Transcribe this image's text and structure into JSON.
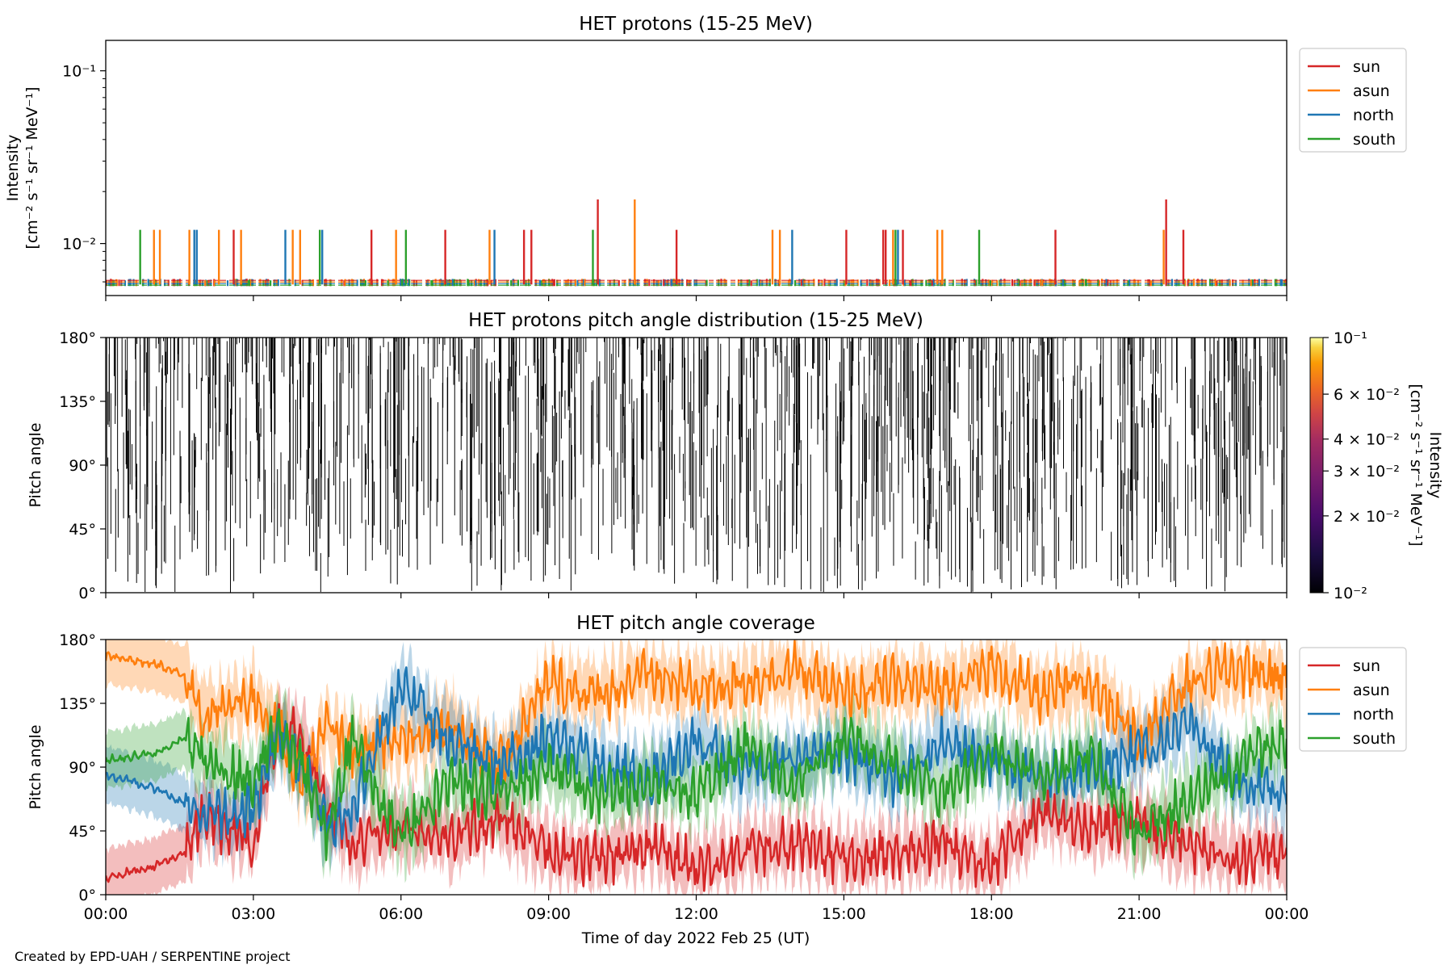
{
  "credit": "Created by EPD-UAH / SERPENTINE project",
  "colors": {
    "sun": "#d62728",
    "asun": "#ff7f0e",
    "north": "#1f77b4",
    "south": "#2ca02c"
  },
  "chart_data": [
    {
      "type": "line",
      "title": "HET protons (15-25 MeV)",
      "ylabel_line1": "Intensity",
      "ylabel_line2": "[cm⁻² s⁻¹ sr⁻¹ MeV⁻¹]",
      "yscale": "log",
      "ylim": [
        0.005,
        0.15
      ],
      "yticks": [
        {
          "value": 0.1,
          "label": "10⁻¹"
        },
        {
          "value": 0.01,
          "label": "10⁻²"
        }
      ],
      "xlim_hours": [
        0,
        24
      ],
      "legend": {
        "placement": "outside-right",
        "entries": [
          "sun",
          "asun",
          "north",
          "south"
        ]
      },
      "baseline_value": 0.0058,
      "series": [
        {
          "name": "sun",
          "spikes": [
            {
              "t": 5.4,
              "v": 0.012
            },
            {
              "t": 6.9,
              "v": 0.012
            },
            {
              "t": 8.5,
              "v": 0.012
            },
            {
              "t": 8.65,
              "v": 0.012
            },
            {
              "t": 10.0,
              "v": 0.018
            },
            {
              "t": 11.6,
              "v": 0.012
            },
            {
              "t": 15.05,
              "v": 0.012
            },
            {
              "t": 15.8,
              "v": 0.012
            },
            {
              "t": 16.2,
              "v": 0.012
            },
            {
              "t": 19.3,
              "v": 0.012
            },
            {
              "t": 21.55,
              "v": 0.018
            },
            {
              "t": 21.9,
              "v": 0.012
            },
            {
              "t": 2.6,
              "v": 0.012
            },
            {
              "t": 15.85,
              "v": 0.012
            }
          ]
        },
        {
          "name": "asun",
          "spikes": [
            {
              "t": 0.98,
              "v": 0.012
            },
            {
              "t": 1.1,
              "v": 0.012
            },
            {
              "t": 1.7,
              "v": 0.012
            },
            {
              "t": 2.3,
              "v": 0.012
            },
            {
              "t": 2.75,
              "v": 0.012
            },
            {
              "t": 3.8,
              "v": 0.012
            },
            {
              "t": 3.95,
              "v": 0.012
            },
            {
              "t": 5.9,
              "v": 0.012
            },
            {
              "t": 7.8,
              "v": 0.012
            },
            {
              "t": 10.75,
              "v": 0.018
            },
            {
              "t": 13.55,
              "v": 0.012
            },
            {
              "t": 13.7,
              "v": 0.012
            },
            {
              "t": 16.0,
              "v": 0.012
            },
            {
              "t": 16.9,
              "v": 0.012
            },
            {
              "t": 17.0,
              "v": 0.012
            },
            {
              "t": 21.5,
              "v": 0.012
            }
          ]
        },
        {
          "name": "north",
          "spikes": [
            {
              "t": 1.8,
              "v": 0.012
            },
            {
              "t": 1.85,
              "v": 0.012
            },
            {
              "t": 3.65,
              "v": 0.012
            },
            {
              "t": 4.4,
              "v": 0.012
            },
            {
              "t": 7.9,
              "v": 0.012
            },
            {
              "t": 13.95,
              "v": 0.012
            },
            {
              "t": 16.1,
              "v": 0.012
            }
          ]
        },
        {
          "name": "south",
          "spikes": [
            {
              "t": 0.7,
              "v": 0.012
            },
            {
              "t": 4.35,
              "v": 0.012
            },
            {
              "t": 6.1,
              "v": 0.012
            },
            {
              "t": 9.9,
              "v": 0.012
            },
            {
              "t": 16.05,
              "v": 0.012
            },
            {
              "t": 17.75,
              "v": 0.012
            }
          ]
        }
      ]
    },
    {
      "type": "heatmap",
      "title": "HET protons pitch angle distribution (15-25 MeV)",
      "ylabel": "Pitch angle",
      "ylim": [
        0,
        180
      ],
      "yticks": [
        {
          "value": 0,
          "label": "0°"
        },
        {
          "value": 45,
          "label": "45°"
        },
        {
          "value": 90,
          "label": "90°"
        },
        {
          "value": 135,
          "label": "135°"
        },
        {
          "value": 180,
          "label": "180°"
        }
      ],
      "xlim_hours": [
        0,
        24
      ],
      "colorbar": {
        "label_line1": "Intensity",
        "label_line2": "[cm⁻² s⁻¹ sr⁻¹ MeV⁻¹]",
        "scale": "log",
        "range": [
          0.01,
          0.1
        ],
        "ticks": [
          {
            "value": 0.1,
            "label": "10⁻¹"
          },
          {
            "value": 0.06,
            "label": "6 × 10⁻²"
          },
          {
            "value": 0.04,
            "label": "4 × 10⁻²"
          },
          {
            "value": 0.03,
            "label": "3 × 10⁻²"
          },
          {
            "value": 0.02,
            "label": "2 × 10⁻²"
          },
          {
            "value": 0.01,
            "label": "10⁻²"
          }
        ]
      }
    },
    {
      "type": "line",
      "title": "HET pitch angle coverage",
      "ylabel": "Pitch angle",
      "xlabel": "Time of day 2022 Feb 25 (UT)",
      "ylim": [
        0,
        180
      ],
      "yticks": [
        {
          "value": 0,
          "label": "0°"
        },
        {
          "value": 45,
          "label": "45°"
        },
        {
          "value": 90,
          "label": "90°"
        },
        {
          "value": 135,
          "label": "135°"
        },
        {
          "value": 180,
          "label": "180°"
        }
      ],
      "xlim_hours": [
        0,
        24
      ],
      "xticks": [
        {
          "value": 0,
          "label": "00:00"
        },
        {
          "value": 3,
          "label": "03:00"
        },
        {
          "value": 6,
          "label": "06:00"
        },
        {
          "value": 9,
          "label": "09:00"
        },
        {
          "value": 12,
          "label": "12:00"
        },
        {
          "value": 15,
          "label": "15:00"
        },
        {
          "value": 18,
          "label": "18:00"
        },
        {
          "value": 21,
          "label": "21:00"
        },
        {
          "value": 24,
          "label": "00:00"
        }
      ],
      "legend": {
        "placement": "outside-right",
        "entries": [
          "sun",
          "asun",
          "north",
          "south"
        ]
      },
      "band_halfwidth_deg": 20,
      "series": [
        {
          "name": "sun",
          "points": [
            [
              0,
              12
            ],
            [
              1,
              20
            ],
            [
              1.6,
              30
            ],
            [
              2,
              55
            ],
            [
              3,
              40
            ],
            [
              3.5,
              120
            ],
            [
              4,
              110
            ],
            [
              4.5,
              60
            ],
            [
              5,
              35
            ],
            [
              6,
              50
            ],
            [
              7,
              40
            ],
            [
              8,
              55
            ],
            [
              9,
              30
            ],
            [
              10,
              25
            ],
            [
              11,
              35
            ],
            [
              12,
              20
            ],
            [
              13,
              30
            ],
            [
              14,
              35
            ],
            [
              15,
              25
            ],
            [
              16,
              30
            ],
            [
              17,
              35
            ],
            [
              18,
              20
            ],
            [
              19,
              60
            ],
            [
              20,
              45
            ],
            [
              21,
              50
            ],
            [
              22,
              35
            ],
            [
              23,
              25
            ],
            [
              24,
              30
            ]
          ]
        },
        {
          "name": "asun",
          "points": [
            [
              0,
              168
            ],
            [
              1,
              163
            ],
            [
              1.6,
              155
            ],
            [
              2,
              125
            ],
            [
              3,
              140
            ],
            [
              3.5,
              115
            ],
            [
              4,
              80
            ],
            [
              4.5,
              120
            ],
            [
              5,
              100
            ],
            [
              6,
              110
            ],
            [
              7,
              120
            ],
            [
              8,
              90
            ],
            [
              9,
              150
            ],
            [
              10,
              140
            ],
            [
              11,
              155
            ],
            [
              12,
              145
            ],
            [
              13,
              150
            ],
            [
              14,
              160
            ],
            [
              15,
              140
            ],
            [
              16,
              150
            ],
            [
              17,
              145
            ],
            [
              18,
              160
            ],
            [
              19,
              140
            ],
            [
              20,
              150
            ],
            [
              21,
              110
            ],
            [
              22,
              150
            ],
            [
              23,
              160
            ],
            [
              24,
              152
            ]
          ]
        },
        {
          "name": "north",
          "points": [
            [
              0,
              85
            ],
            [
              1,
              75
            ],
            [
              1.6,
              65
            ],
            [
              2,
              55
            ],
            [
              3,
              60
            ],
            [
              3.5,
              115
            ],
            [
              4,
              90
            ],
            [
              4.5,
              50
            ],
            [
              5,
              60
            ],
            [
              6,
              150
            ],
            [
              7,
              110
            ],
            [
              8,
              90
            ],
            [
              9,
              110
            ],
            [
              10,
              95
            ],
            [
              11,
              80
            ],
            [
              12,
              110
            ],
            [
              13,
              85
            ],
            [
              14,
              95
            ],
            [
              15,
              100
            ],
            [
              16,
              80
            ],
            [
              17,
              110
            ],
            [
              18,
              95
            ],
            [
              19,
              80
            ],
            [
              20,
              90
            ],
            [
              21,
              100
            ],
            [
              22,
              120
            ],
            [
              23,
              80
            ],
            [
              24,
              70
            ]
          ]
        },
        {
          "name": "south",
          "points": [
            [
              0,
              95
            ],
            [
              1,
              100
            ],
            [
              1.6,
              110
            ],
            [
              2,
              95
            ],
            [
              3,
              80
            ],
            [
              3.5,
              120
            ],
            [
              4,
              90
            ],
            [
              4.5,
              40
            ],
            [
              5,
              110
            ],
            [
              6,
              40
            ],
            [
              7,
              80
            ],
            [
              8,
              70
            ],
            [
              9,
              90
            ],
            [
              10,
              70
            ],
            [
              11,
              80
            ],
            [
              12,
              70
            ],
            [
              13,
              105
            ],
            [
              14,
              80
            ],
            [
              15,
              110
            ],
            [
              16,
              95
            ],
            [
              17,
              70
            ],
            [
              18,
              100
            ],
            [
              19,
              80
            ],
            [
              20,
              100
            ],
            [
              21,
              40
            ],
            [
              22,
              70
            ],
            [
              23,
              90
            ],
            [
              24,
              110
            ]
          ]
        }
      ]
    }
  ]
}
